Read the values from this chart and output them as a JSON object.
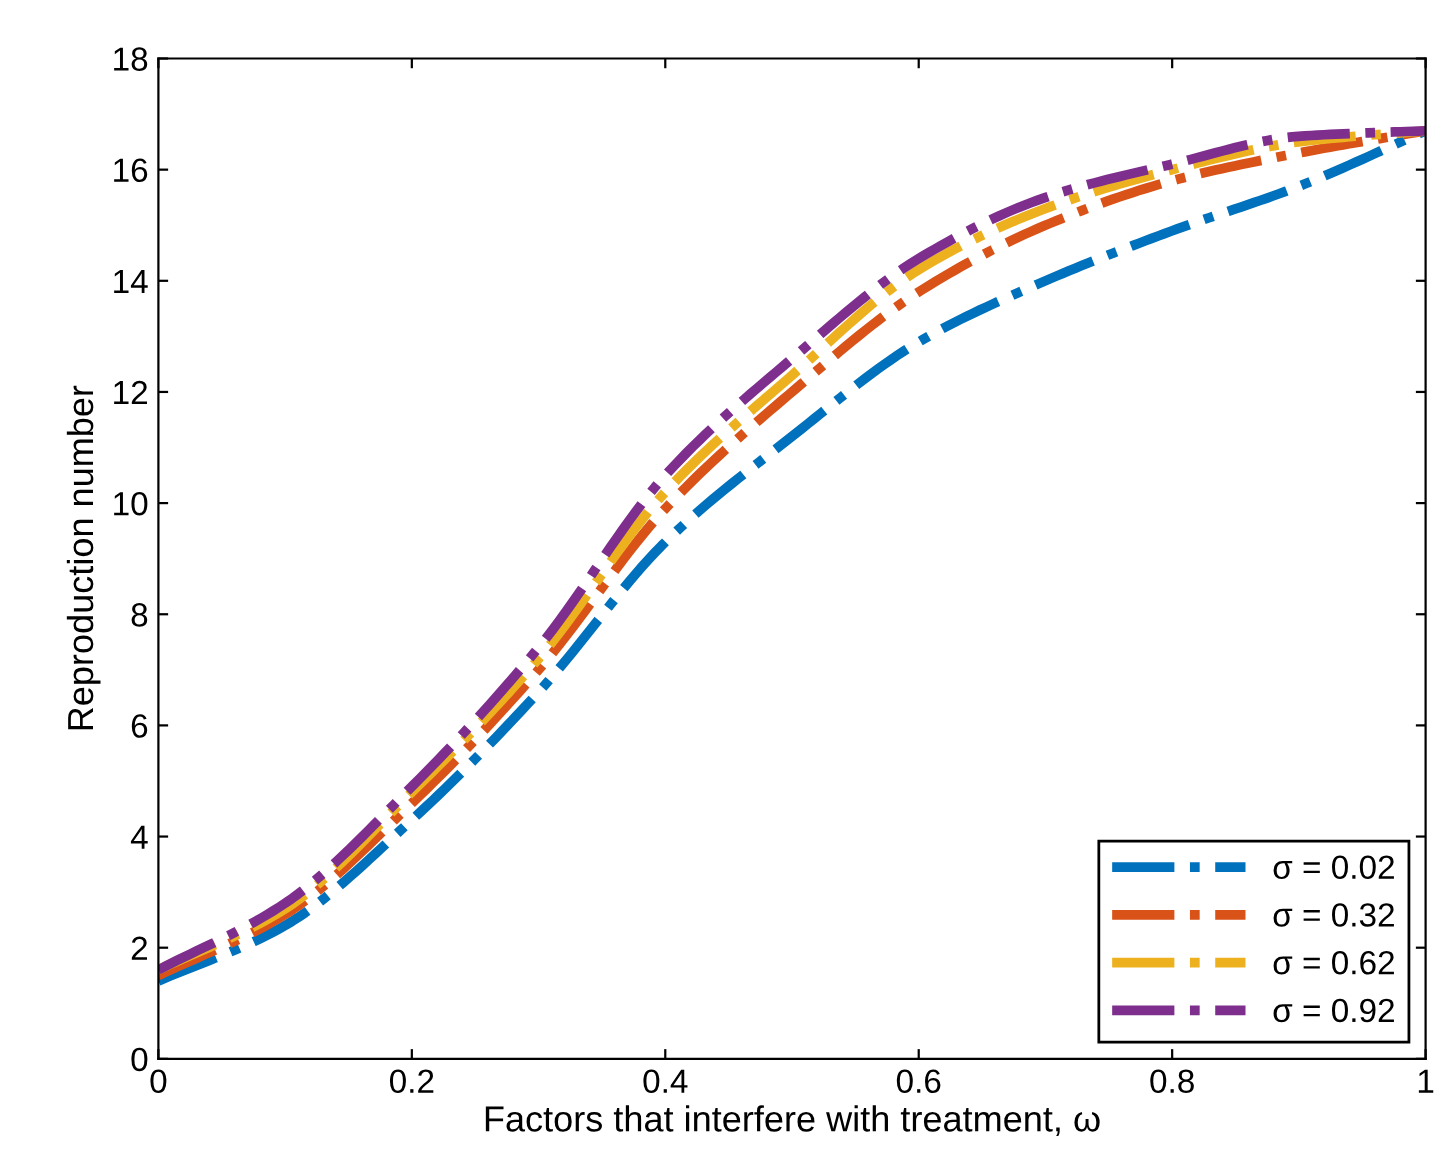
{
  "chart_data": {
    "type": "line",
    "xlabel": "Factors that interfere with treatment, ω",
    "ylabel": "Reproduction number",
    "x": [
      0,
      0.1,
      0.2,
      0.3,
      0.4,
      0.5,
      0.6,
      0.7,
      0.8,
      0.9,
      1
    ],
    "series": [
      {
        "name": "σ = 0.02",
        "color": "#0072bd",
        "values": [
          1.4,
          2.4,
          4.3,
          6.6,
          9.3,
          11.2,
          12.9,
          14.0,
          14.9,
          15.7,
          16.7
        ]
      },
      {
        "name": "σ = 0.32",
        "color": "#d95319",
        "values": [
          1.5,
          2.6,
          4.6,
          7.0,
          9.9,
          12.0,
          13.8,
          15.0,
          15.8,
          16.3,
          16.7
        ]
      },
      {
        "name": "σ = 0.62",
        "color": "#edb120",
        "values": [
          1.6,
          2.7,
          4.8,
          7.2,
          10.2,
          12.3,
          14.2,
          15.3,
          16.0,
          16.5,
          16.7
        ]
      },
      {
        "name": "σ = 0.92",
        "color": "#7e2f8e",
        "values": [
          1.6,
          2.8,
          4.9,
          7.4,
          10.5,
          12.6,
          14.4,
          15.5,
          16.1,
          16.6,
          16.7
        ]
      }
    ],
    "xlim": [
      0,
      1
    ],
    "xticks": [
      0,
      0.2,
      0.4,
      0.6,
      0.8,
      1
    ],
    "ylim": [
      0,
      18
    ],
    "yticks": [
      0,
      2,
      4,
      6,
      8,
      10,
      12,
      14,
      16,
      18
    ],
    "grid": false,
    "legend": "bottom right",
    "line_style": "dashdot",
    "marker": "none"
  }
}
